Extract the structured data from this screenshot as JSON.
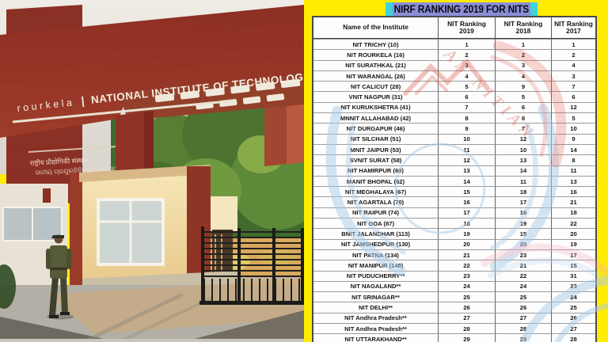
{
  "left_photo": {
    "description": "NIT Rourkela main entrance gate photograph",
    "gate_sign": {
      "campus": "rourkela",
      "separator": "|",
      "institute": "NATIONAL INSTITUTE OF TECHNOLOG"
    },
    "pillar_script_line1": "राष्ट्रीय प्रौद्योगिकी संस्थान",
    "pillar_script_line2": "ଜାତୀୟ ପ୍ରଯୁକ୍ତିବିଦ୍ୟା ପ୍ରତିଷ୍ଠାନ"
  },
  "right_panel": {
    "title": "NIRF RANKING 2019 FOR NITS",
    "watermark_text": "AN NITIAN",
    "colors": {
      "background": "#ffec00",
      "title_bg": "#8b8ed6",
      "title_accent": "#3ed2dc",
      "table_bg": "#fdfdfd",
      "table_border": "#4a4a4a",
      "watermark_blue": "#a9cbe8",
      "watermark_red": "#d6453c"
    }
  },
  "chart_data": {
    "type": "table",
    "title": "NIRF RANKING 2019 FOR NITS",
    "columns": [
      "Name of the Institute",
      "NIT Ranking 2019",
      "NIT Ranking 2018",
      "NIT Ranking 2017"
    ],
    "rows": [
      [
        "NIT TRICHY (10)",
        "1",
        "1",
        "1"
      ],
      [
        "NIT ROURKELA (16)",
        "2",
        "2",
        "2"
      ],
      [
        "NIT SURATHKAL (21)",
        "3",
        "3",
        "4"
      ],
      [
        "NIT WARANGAL (26)",
        "4",
        "4",
        "3"
      ],
      [
        "NIT CALICUT (28)",
        "5",
        "9",
        "7"
      ],
      [
        "VNIT NAGPUR (31)",
        "6",
        "5",
        "6"
      ],
      [
        "NIT KURUKSHETRA (41)",
        "7",
        "6",
        "12"
      ],
      [
        "MNNIT ALLAHABAD (42)",
        "8",
        "8",
        "5"
      ],
      [
        "NIT DURGAPUR (46)",
        "9",
        "7",
        "10"
      ],
      [
        "NIT SILCHAR (51)",
        "10",
        "12",
        "9"
      ],
      [
        "MNIT JAIPUR (53)",
        "11",
        "10",
        "14"
      ],
      [
        "SVNIT SURAT (58)",
        "12",
        "13",
        "8"
      ],
      [
        "NIT HAMIRPUR (60)",
        "13",
        "14",
        "11"
      ],
      [
        "MANIT BHOPAL (62)",
        "14",
        "11",
        "13"
      ],
      [
        "NIT MEGHALAYA (67)",
        "15",
        "18",
        "16"
      ],
      [
        "NIT AGARTALA (70)",
        "16",
        "17",
        "21"
      ],
      [
        "NIT RAIPUR (74)",
        "17",
        "16",
        "18"
      ],
      [
        "NIT GOA (87)",
        "18",
        "19",
        "22"
      ],
      [
        "BNIT JALANDHAR (113)",
        "19",
        "15",
        "20"
      ],
      [
        "NIT JAMSHEDPUR (130)",
        "20",
        "20",
        "19"
      ],
      [
        "NIT PATNA (134)",
        "21",
        "23",
        "17"
      ],
      [
        "NIT MANIPUR (148)",
        "22",
        "21",
        "15"
      ],
      [
        "NIT PUDUCHERRY**",
        "23",
        "22",
        "31"
      ],
      [
        "NIT NAGALAND**",
        "24",
        "24",
        "23"
      ],
      [
        "NIT SRINAGAR**",
        "25",
        "25",
        "24"
      ],
      [
        "NIT DELHI**",
        "26",
        "26",
        "25"
      ],
      [
        "NIT Andhra Pradesh**",
        "27",
        "27",
        "26"
      ],
      [
        "NIT Andhra Pradesh**",
        "28",
        "28",
        "27"
      ],
      [
        "NIT UTTARAKHAND**",
        "29",
        "29",
        "28"
      ]
    ]
  }
}
